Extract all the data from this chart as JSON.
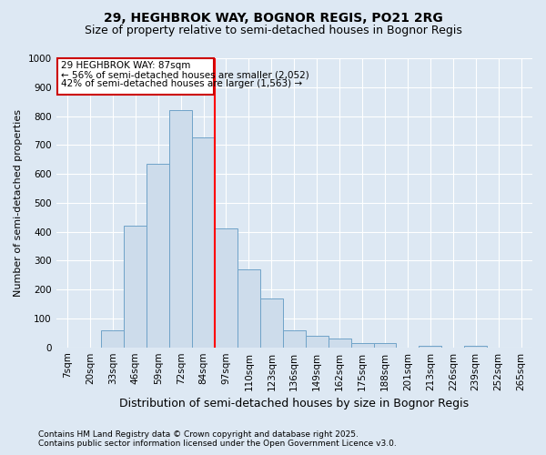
{
  "title": "29, HEGHBROK WAY, BOGNOR REGIS, PO21 2RG",
  "subtitle": "Size of property relative to semi-detached houses in Bognor Regis",
  "xlabel": "Distribution of semi-detached houses by size in Bognor Regis",
  "ylabel": "Number of semi-detached properties",
  "categories": [
    "7sqm",
    "20sqm",
    "33sqm",
    "46sqm",
    "59sqm",
    "72sqm",
    "84sqm",
    "97sqm",
    "110sqm",
    "123sqm",
    "136sqm",
    "149sqm",
    "162sqm",
    "175sqm",
    "188sqm",
    "201sqm",
    "213sqm",
    "226sqm",
    "239sqm",
    "252sqm",
    "265sqm"
  ],
  "values": [
    0,
    0,
    60,
    420,
    635,
    820,
    725,
    410,
    270,
    170,
    60,
    40,
    30,
    15,
    15,
    0,
    5,
    0,
    5,
    0,
    0
  ],
  "bar_color": "#cddceb",
  "bar_edge_color": "#6fa3c8",
  "background_color": "#dde8f3",
  "grid_color": "#ffffff",
  "annotation_text_line1": "29 HEGHBROK WAY: 87sqm",
  "annotation_text_line2": "← 56% of semi-detached houses are smaller (2,052)",
  "annotation_text_line3": "42% of semi-detached houses are larger (1,563) →",
  "annotation_box_color": "#cc0000",
  "red_line_x": 6.5,
  "ylim": [
    0,
    1000
  ],
  "yticks": [
    0,
    100,
    200,
    300,
    400,
    500,
    600,
    700,
    800,
    900,
    1000
  ],
  "footer_line1": "Contains HM Land Registry data © Crown copyright and database right 2025.",
  "footer_line2": "Contains public sector information licensed under the Open Government Licence v3.0.",
  "title_fontsize": 10,
  "subtitle_fontsize": 9,
  "xlabel_fontsize": 9,
  "ylabel_fontsize": 8,
  "tick_fontsize": 7.5,
  "annotation_fontsize": 7.5,
  "footer_fontsize": 6.5
}
